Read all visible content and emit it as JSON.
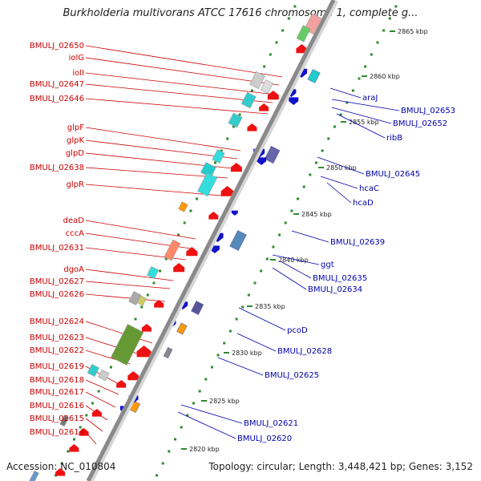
{
  "title": "Burkholderia multivorans ATCC 17616 chromosome 1, complete g...",
  "footer": {
    "accession": "Accession: NC_010804",
    "summary": "Topology: circular; Length: 3,448,421 bp; Genes: 3,152"
  },
  "colors": {
    "left_label": "#cc0000",
    "right_label": "#0000aa",
    "forward_gene": "#ee1111",
    "reverse_gene": "#1111cc",
    "backbone": "#888888",
    "tick": "#2e8b2e"
  },
  "kbp_ticks": [
    "2865 kbp",
    "2860 kbp",
    "2855 kbp",
    "2850 kbp",
    "2845 kbp",
    "2840 kbp",
    "2835 kbp",
    "2830 kbp",
    "2825 kbp",
    "2820 kbp"
  ],
  "left_labels": [
    "BMULJ_02650",
    "iolG",
    "iolI",
    "BMULJ_02647",
    "BMULJ_02646",
    "glpF",
    "glpK",
    "glpD",
    "BMULJ_02638",
    "glpR",
    "deaD",
    "cccA",
    "BMULJ_02631",
    "dgoA",
    "BMULJ_02627",
    "BMULJ_02626",
    "BMULJ_02624",
    "BMULJ_02623",
    "BMULJ_02622",
    "BMULJ_02619",
    "BMULJ_02618",
    "BMULJ_02617",
    "BMULJ_02616",
    "BMULJ_02615",
    "BMULJ_02614"
  ],
  "right_labels": [
    "araJ",
    "BMULJ_02653",
    "BMULJ_02652",
    "ribB",
    "BMULJ_02645",
    "hcaC",
    "hcaD",
    "BMULJ_02639",
    "ggt",
    "BMULJ_02635",
    "BMULJ_02634",
    "pcoD",
    "BMULJ_02628",
    "BMULJ_02625",
    "BMULJ_02621",
    "BMULJ_02620"
  ]
}
